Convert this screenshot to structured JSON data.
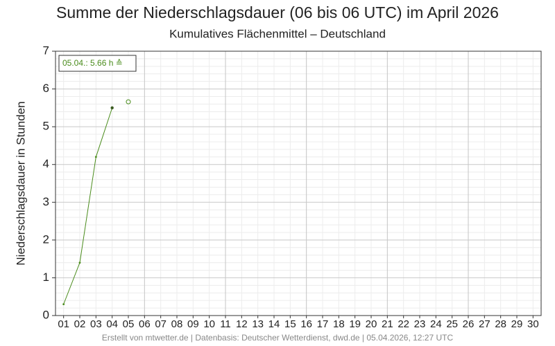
{
  "chart_data": {
    "type": "line",
    "title": "Summe der Niederschlagsdauer (06 bis 06 UTC) im April 2026",
    "subtitle": "Kumulatives Flächenmittel – Deutschland",
    "y_label": "Niederschlagsdauer in Stunden",
    "footer": "Erstellt von mtwetter.de | Datenbasis: Deutscher Wetterdienst, dwd.de | 05.04.2026, 12:27 UTC",
    "categories": [
      "01",
      "02",
      "03",
      "04",
      "05",
      "06",
      "07",
      "08",
      "09",
      "10",
      "11",
      "12",
      "13",
      "14",
      "15",
      "16",
      "17",
      "18",
      "19",
      "20",
      "21",
      "22",
      "23",
      "24",
      "25",
      "26",
      "27",
      "28",
      "29",
      "30"
    ],
    "series": [
      {
        "color": "#4a8c1c",
        "values": [
          0.3,
          1.4,
          4.2,
          5.5,
          null,
          null,
          null,
          null,
          null,
          null,
          null,
          null,
          null,
          null,
          null,
          null,
          null,
          null,
          null,
          null,
          null,
          null,
          null,
          null,
          null,
          null,
          null,
          null,
          null,
          null
        ]
      },
      {
        "name": "05.04.: 5.66 h ≙",
        "color": "#4a8c1c",
        "values": [
          null,
          null,
          null,
          null,
          5.66,
          null,
          null,
          null,
          null,
          null,
          null,
          null,
          null,
          null,
          null,
          null,
          null,
          null,
          null,
          null,
          null,
          null,
          null,
          null,
          null,
          null,
          null,
          null,
          null,
          null
        ]
      }
    ],
    "ylim": [
      0,
      7
    ],
    "yticks": [
      0,
      1,
      2,
      3,
      4,
      5,
      6,
      7
    ],
    "grid": true,
    "legend": "upper left"
  }
}
